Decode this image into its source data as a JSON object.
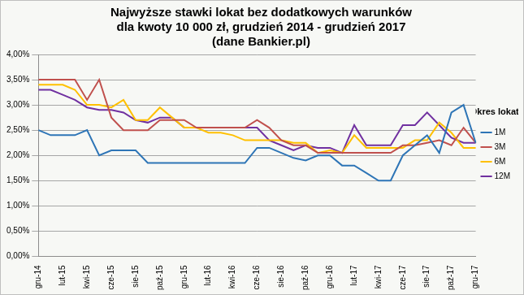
{
  "chart_data": {
    "type": "line",
    "title": [
      "Najwyższe stawki lokat bez dodatkowych warunków",
      "dla kwoty 10 000 zł, grudzień 2014 - grudzień 2017",
      "(dane Bankier.pl)"
    ],
    "legend_title": "Okres lokaty",
    "legend": "right",
    "grid": true,
    "categories": [
      "gru-14",
      null,
      "lut-15",
      null,
      "kwi-15",
      null,
      "cze-15",
      null,
      "sie-15",
      null,
      "paź-15",
      null,
      "gru-15",
      null,
      "lut-16",
      null,
      "kwi-16",
      null,
      "cze-16",
      null,
      "sie-16",
      null,
      "paź-16",
      null,
      "gru-16",
      null,
      "lut-17",
      null,
      "kwi-17",
      null,
      "cze-17",
      null,
      "sie-17",
      null,
      "paź-17",
      null,
      "gru-17"
    ],
    "ylim": [
      0,
      4
    ],
    "yticks": [
      {
        "value": 0,
        "label": "0,00%"
      },
      {
        "value": 0.5,
        "label": "0,50%"
      },
      {
        "value": 1,
        "label": "1,00%"
      },
      {
        "value": 1.5,
        "label": "1,50%"
      },
      {
        "value": 2,
        "label": "2,00%"
      },
      {
        "value": 2.5,
        "label": "2,50%"
      },
      {
        "value": 3,
        "label": "3,00%"
      },
      {
        "value": 3.5,
        "label": "3,50%"
      },
      {
        "value": 4,
        "label": "4,00%"
      }
    ],
    "series": [
      {
        "name": "1M",
        "color": "#2e75b6",
        "values": [
          2.5,
          2.4,
          2.4,
          2.4,
          2.5,
          2.0,
          2.1,
          2.1,
          2.1,
          1.85,
          1.85,
          1.85,
          1.85,
          1.85,
          1.85,
          1.85,
          1.85,
          1.85,
          2.15,
          2.15,
          2.05,
          1.95,
          1.9,
          2.0,
          2.0,
          1.8,
          1.8,
          1.65,
          1.5,
          1.5,
          2.0,
          2.2,
          2.4,
          2.05,
          2.85,
          3.0,
          2.25
        ]
      },
      {
        "name": "3M",
        "color": "#c0504d",
        "values": [
          3.5,
          3.5,
          3.5,
          3.5,
          3.1,
          3.5,
          2.75,
          2.5,
          2.5,
          2.5,
          2.7,
          2.7,
          2.7,
          2.55,
          2.55,
          2.55,
          2.55,
          2.55,
          2.7,
          2.55,
          2.3,
          2.2,
          2.2,
          2.05,
          2.05,
          2.05,
          2.05,
          2.05,
          2.05,
          2.05,
          2.2,
          2.2,
          2.25,
          2.3,
          2.2,
          2.55,
          2.25
        ]
      },
      {
        "name": "6M",
        "color": "#ffc000",
        "values": [
          3.4,
          3.4,
          3.4,
          3.3,
          3.0,
          3.0,
          2.95,
          3.1,
          2.7,
          2.7,
          2.95,
          2.75,
          2.55,
          2.55,
          2.45,
          2.45,
          2.4,
          2.3,
          2.3,
          2.3,
          2.3,
          2.25,
          2.25,
          2.05,
          2.1,
          2.05,
          2.4,
          2.15,
          2.15,
          2.15,
          2.15,
          2.3,
          2.3,
          2.65,
          2.45,
          2.15,
          2.15
        ]
      },
      {
        "name": "12M",
        "color": "#7030a0",
        "values": [
          3.3,
          3.3,
          3.2,
          3.1,
          2.95,
          2.9,
          2.9,
          2.85,
          2.7,
          2.65,
          2.75,
          2.75,
          2.55,
          2.55,
          2.55,
          2.55,
          2.55,
          2.55,
          2.55,
          2.3,
          2.2,
          2.1,
          2.2,
          2.15,
          2.15,
          2.05,
          2.6,
          2.2,
          2.2,
          2.2,
          2.6,
          2.6,
          2.85,
          2.6,
          2.35,
          2.25,
          2.25
        ]
      }
    ]
  }
}
